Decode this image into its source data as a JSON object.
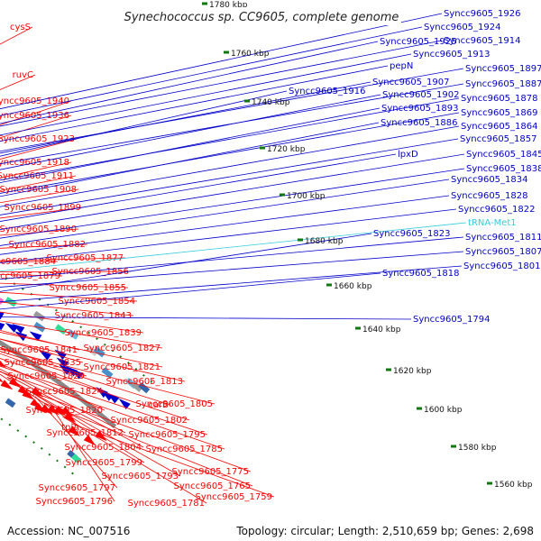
{
  "title": "Synechococcus sp. CC9605, complete genome",
  "accession": "Accession: NC_007516",
  "topology": "Topology: circular; Length: 2,510,659 bp; Genes: 2,698",
  "colors": {
    "forward": "#ff0000",
    "reverse": "#0000cc",
    "trna": "#33ccdd",
    "backbone": "#888888",
    "tick": "#117711"
  },
  "kbp_ticks": [
    "1780 kbp",
    "1760 kbp",
    "1740 kbp",
    "1720 kbp",
    "1700 kbp",
    "1680 kbp",
    "1660 kbp",
    "1640 kbp",
    "1620 kbp",
    "1600 kbp",
    "1580 kbp",
    "1560 kbp"
  ],
  "left_labels": [
    "cysS",
    "ruvC",
    "Syncc9605_1940",
    "Syncc9605_1936",
    "Syncc9605_1923",
    "Syncc9605_1918",
    "Syncc9605_1911",
    "Syncc9605_1908",
    "Syncc9605_1899",
    "Syncc9605_1890",
    "Syncc9605_1882",
    "Syncc9605_1884",
    "Syncc9605_1877",
    "Syncc9605_1879",
    "Syncc9605_1856",
    "Syncc9605_1855",
    "Syncc9605_1854",
    "Syncc9605_1843",
    "Syncc9605_1839",
    "Syncc9605_1841",
    "Syncc9605_1827",
    "Syncc9605_1835",
    "Syncc9605_1821",
    "Syncc9605_1829",
    "Syncc9605_1813",
    "Syncc9605_1824",
    "carB",
    "Syncc9605_1805",
    "Syncc9605_1820",
    "Syncc9605_1802",
    "tpiA",
    "Syncc9605_1812",
    "Syncc9605_1795",
    "Syncc9605_1804",
    "Syncc9605_1785",
    "Syncc9605_1799",
    "Syncc9605_1793",
    "Syncc9605_1775",
    "Syncc9605_1797",
    "Syncc9605_1765",
    "Syncc9605_1796",
    "Syncc9605_1781",
    "Syncc9605_1759"
  ],
  "right_labels": [
    "Syncc9605_1926",
    "Syncc9605_1924",
    "Syncc9605_1914",
    "Syncc9605_1925",
    "Syncc9605_1913",
    "pepN",
    "Syncc9605_1897",
    "Syncc9605_1907",
    "Syncc9605_1887",
    "Syncc9605_1916",
    "Syncc9605_1902",
    "Syncc9605_1878",
    "Syncc9605_1893",
    "Syncc9605_1869",
    "Syncc9605_1886",
    "Syncc9605_1864",
    "Syncc9605_1857",
    "lpxD",
    "Syncc9605_1845",
    "Syncc9605_1838",
    "Syncc9605_1834",
    "Syncc9605_1828",
    "Syncc9605_1822",
    "tRNA-Met1",
    "Syncc9605_1811",
    "Syncc9605_1807",
    "Syncc9605_1823",
    "Syncc9605_1801",
    "Syncc9605_1818",
    "Syncc9605_1794"
  ]
}
